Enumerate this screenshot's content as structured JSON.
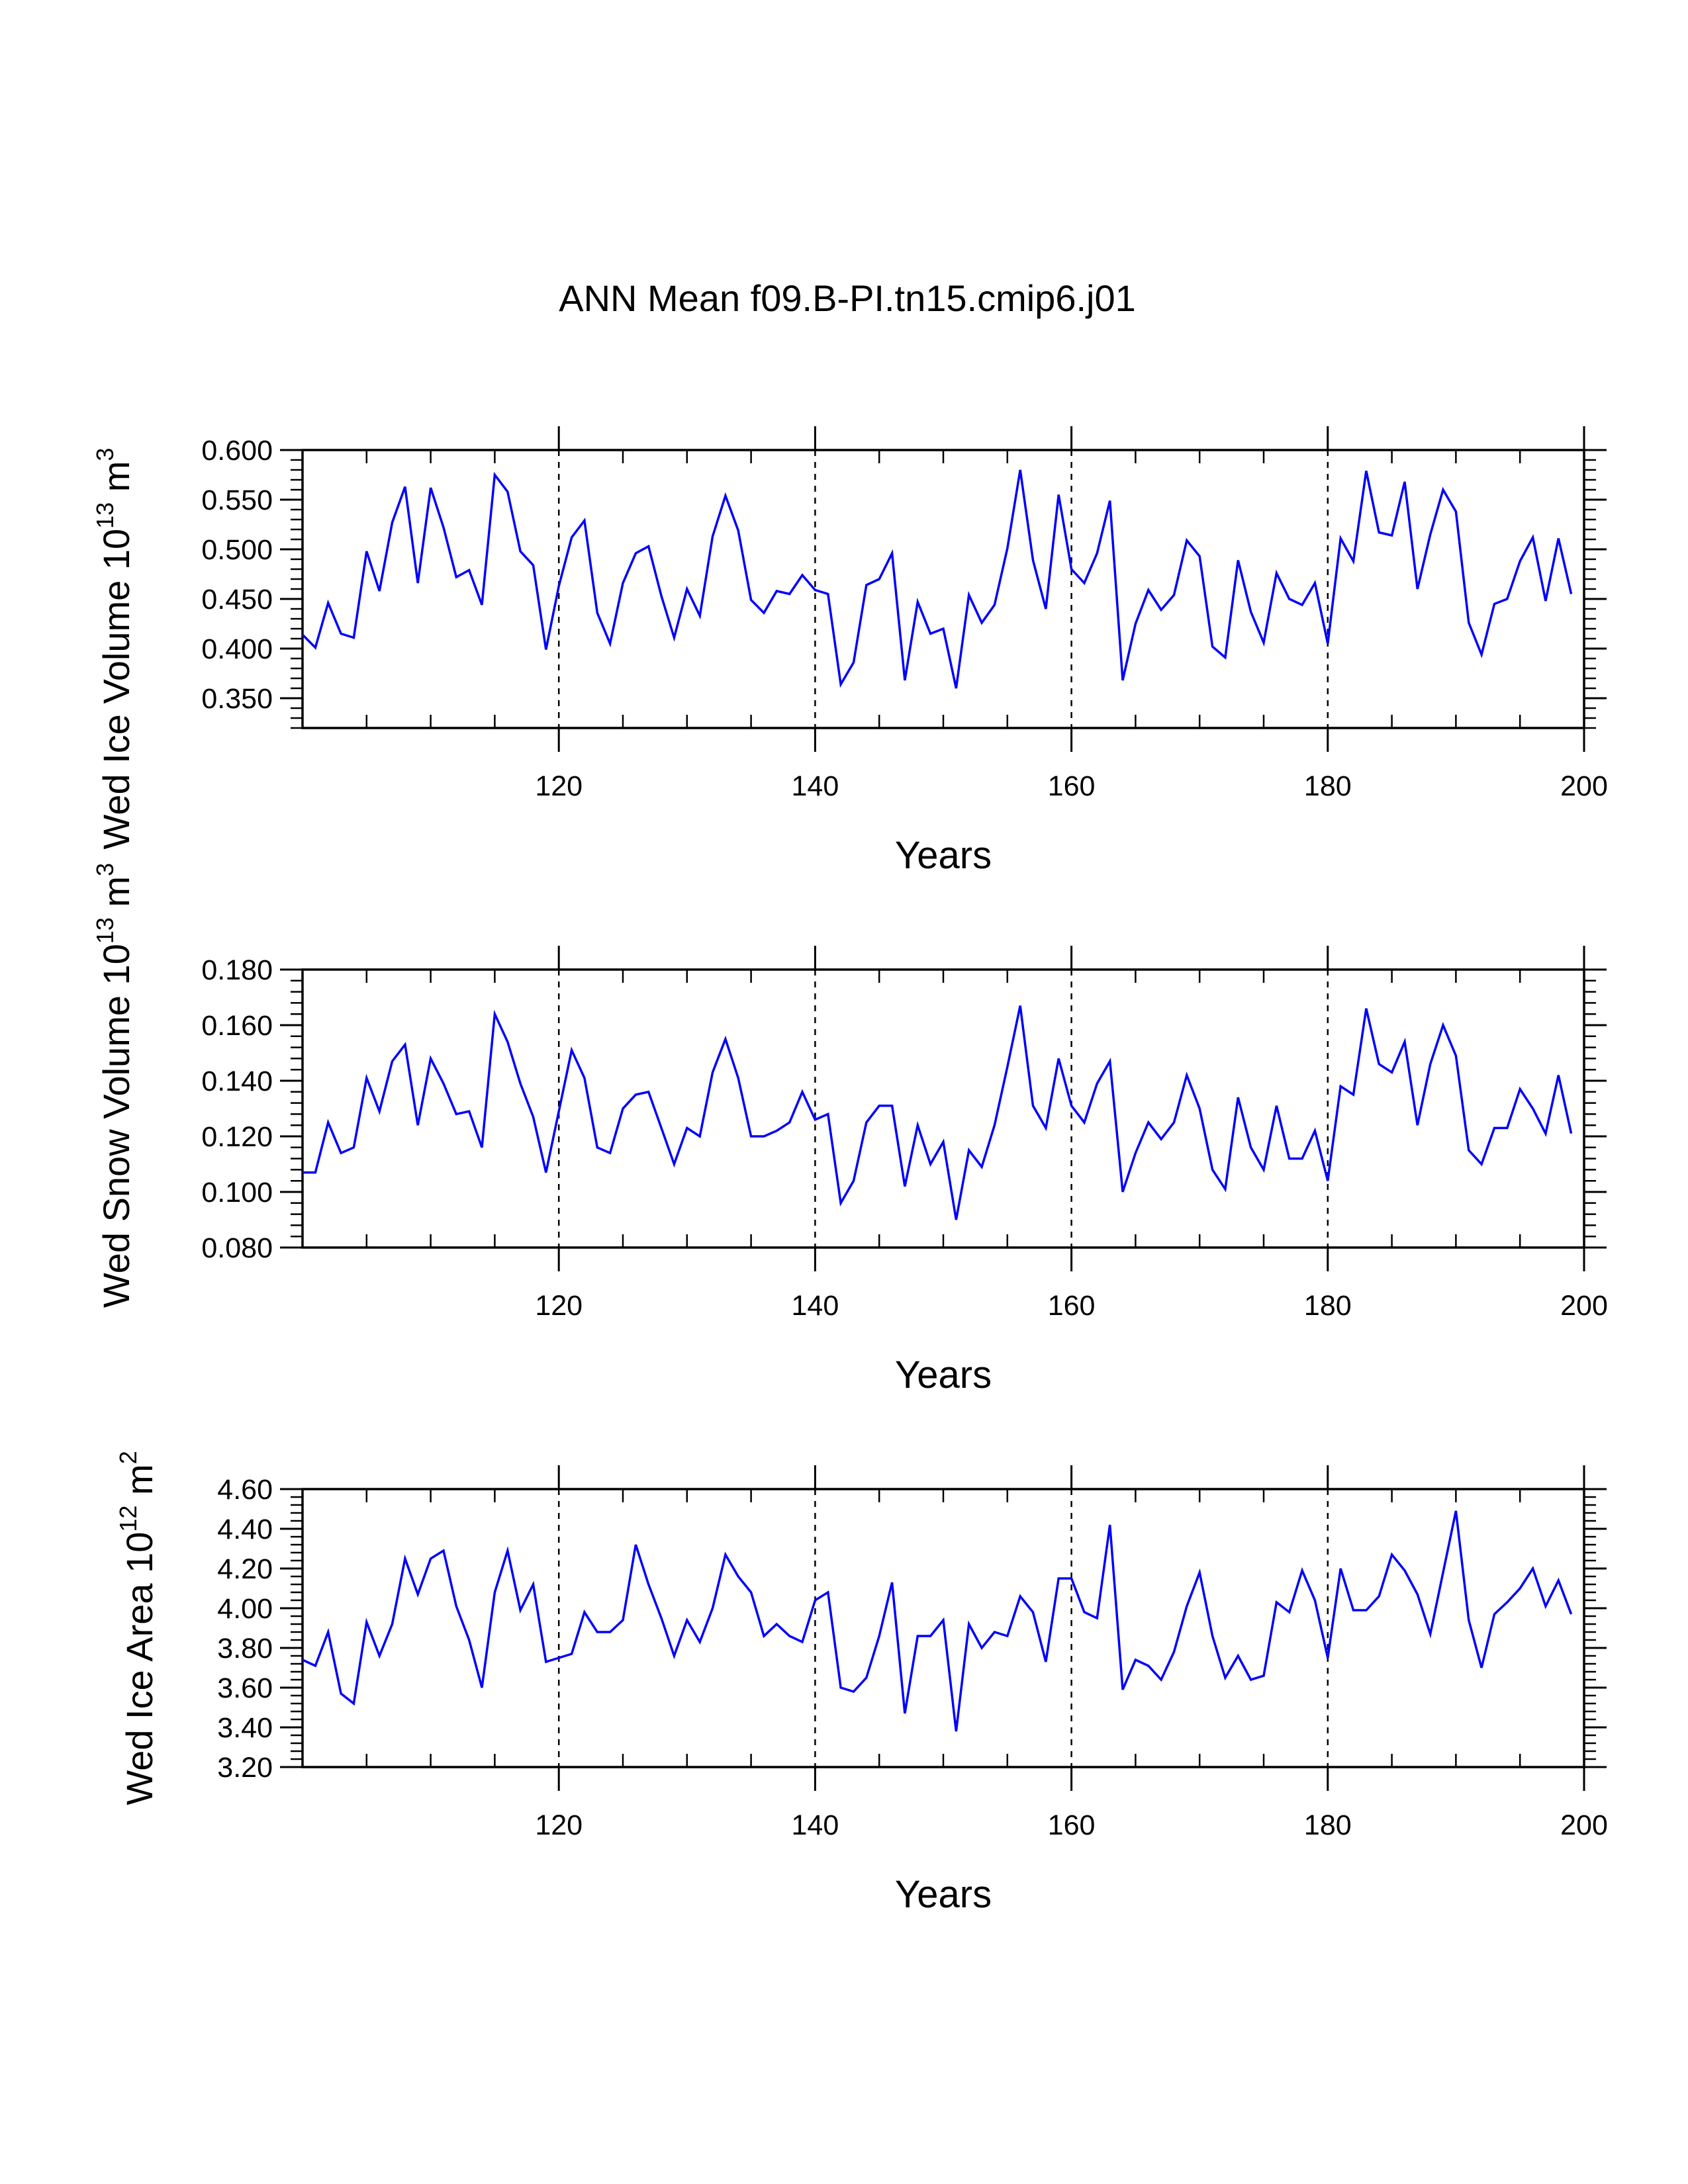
{
  "title": "ANN Mean f09.B-PI.tn15.cmip6.j01",
  "colors": {
    "series": "#0000ff",
    "axes": "#000000",
    "gridlines": "#000000"
  },
  "chart_data": [
    {
      "type": "line",
      "ylabel": {
        "main": "Wed Ice Volume 10",
        "exponent": "13",
        "unit": " m",
        "unit_exponent": "3"
      },
      "xlabel": "Years",
      "xlim": [
        100,
        200
      ],
      "ylim": [
        0.32,
        0.6
      ],
      "xticks": [
        "120",
        "140",
        "160",
        "180",
        "200"
      ],
      "yticks": [
        "0.350",
        "0.400",
        "0.450",
        "0.500",
        "0.550",
        "0.600"
      ],
      "vertical_gridlines": "dashed at 120, 140, 160, 180",
      "x_start": 100,
      "x_step": 1,
      "values": [
        0.414,
        0.401,
        0.446,
        0.415,
        0.411,
        0.498,
        0.458,
        0.527,
        0.563,
        0.466,
        0.562,
        0.522,
        0.472,
        0.479,
        0.444,
        0.575,
        0.558,
        0.498,
        0.484,
        0.399,
        0.463,
        0.512,
        0.529,
        0.436,
        0.405,
        0.466,
        0.496,
        0.503,
        0.453,
        0.411,
        0.46,
        0.433,
        0.513,
        0.554,
        0.519,
        0.449,
        0.436,
        0.458,
        0.455,
        0.474,
        0.459,
        0.455,
        0.364,
        0.386,
        0.464,
        0.47,
        0.496,
        0.368,
        0.447,
        0.415,
        0.42,
        0.36,
        0.454,
        0.426,
        0.444,
        0.501,
        0.58,
        0.489,
        0.44,
        0.555,
        0.48,
        0.466,
        0.496,
        0.549,
        0.368,
        0.425,
        0.459,
        0.439,
        0.454,
        0.509,
        0.493,
        0.402,
        0.391,
        0.489,
        0.437,
        0.406,
        0.476,
        0.45,
        0.444,
        0.466,
        0.405,
        0.511,
        0.488,
        0.579,
        0.517,
        0.514,
        0.568,
        0.46,
        0.515,
        0.56,
        0.538,
        0.426,
        0.394,
        0.445,
        0.45,
        0.488,
        0.512,
        0.448,
        0.511,
        0.455
      ]
    },
    {
      "type": "line",
      "ylabel": {
        "main": "Wed Snow Volume 10",
        "exponent": "13",
        "unit": " m",
        "unit_exponent": "3"
      },
      "xlabel": "Years",
      "xlim": [
        100,
        200
      ],
      "ylim": [
        0.08,
        0.18
      ],
      "xticks": [
        "120",
        "140",
        "160",
        "180",
        "200"
      ],
      "yticks": [
        "0.080",
        "0.100",
        "0.120",
        "0.140",
        "0.160",
        "0.180"
      ],
      "vertical_gridlines": "dashed at 120, 140, 160, 180",
      "x_start": 100,
      "x_step": 1,
      "values": [
        0.107,
        0.107,
        0.125,
        0.114,
        0.116,
        0.141,
        0.129,
        0.147,
        0.153,
        0.124,
        0.148,
        0.139,
        0.128,
        0.129,
        0.116,
        0.164,
        0.154,
        0.139,
        0.127,
        0.107,
        0.129,
        0.151,
        0.141,
        0.116,
        0.114,
        0.13,
        0.135,
        0.136,
        0.123,
        0.11,
        0.123,
        0.12,
        0.143,
        0.155,
        0.141,
        0.12,
        0.12,
        0.122,
        0.125,
        0.136,
        0.126,
        0.128,
        0.096,
        0.104,
        0.125,
        0.131,
        0.131,
        0.102,
        0.124,
        0.11,
        0.118,
        0.09,
        0.115,
        0.109,
        0.124,
        0.145,
        0.167,
        0.131,
        0.123,
        0.148,
        0.131,
        0.125,
        0.139,
        0.147,
        0.1,
        0.114,
        0.125,
        0.119,
        0.125,
        0.142,
        0.13,
        0.108,
        0.101,
        0.134,
        0.116,
        0.108,
        0.131,
        0.112,
        0.112,
        0.122,
        0.104,
        0.138,
        0.135,
        0.166,
        0.146,
        0.143,
        0.154,
        0.124,
        0.146,
        0.16,
        0.149,
        0.115,
        0.11,
        0.123,
        0.123,
        0.137,
        0.13,
        0.121,
        0.142,
        0.121
      ]
    },
    {
      "type": "line",
      "ylabel": {
        "main": "Wed Ice Area 10",
        "exponent": "12",
        "unit": " m",
        "unit_exponent": "2"
      },
      "xlabel": "Years",
      "xlim": [
        100,
        200
      ],
      "ylim": [
        3.2,
        4.6
      ],
      "xticks": [
        "120",
        "140",
        "160",
        "180",
        "200"
      ],
      "yticks": [
        "3.20",
        "3.40",
        "3.60",
        "3.80",
        "4.00",
        "4.20",
        "4.40",
        "4.60"
      ],
      "vertical_gridlines": "dashed at 120, 140, 160, 180",
      "x_start": 100,
      "x_step": 1,
      "values": [
        3.74,
        3.71,
        3.88,
        3.57,
        3.52,
        3.93,
        3.76,
        3.92,
        4.25,
        4.07,
        4.25,
        4.29,
        4.01,
        3.84,
        3.6,
        4.08,
        4.29,
        3.99,
        4.12,
        3.73,
        3.75,
        3.77,
        3.98,
        3.88,
        3.88,
        3.94,
        4.32,
        4.12,
        3.95,
        3.76,
        3.94,
        3.83,
        4.0,
        4.27,
        4.16,
        4.08,
        3.86,
        3.92,
        3.86,
        3.83,
        4.04,
        4.08,
        3.6,
        3.58,
        3.65,
        3.86,
        4.13,
        3.47,
        3.86,
        3.86,
        3.94,
        3.38,
        3.92,
        3.8,
        3.88,
        3.86,
        4.06,
        3.98,
        3.73,
        4.15,
        4.15,
        3.98,
        3.95,
        4.42,
        3.59,
        3.74,
        3.71,
        3.64,
        3.78,
        4.01,
        4.18,
        3.86,
        3.65,
        3.76,
        3.64,
        3.66,
        4.03,
        3.98,
        4.19,
        4.04,
        3.75,
        4.2,
        3.99,
        3.99,
        4.06,
        4.27,
        4.19,
        4.07,
        3.87,
        4.18,
        4.49,
        3.94,
        3.7,
        3.97,
        4.03,
        4.1,
        4.2,
        4.01,
        4.14,
        3.97
      ]
    }
  ]
}
